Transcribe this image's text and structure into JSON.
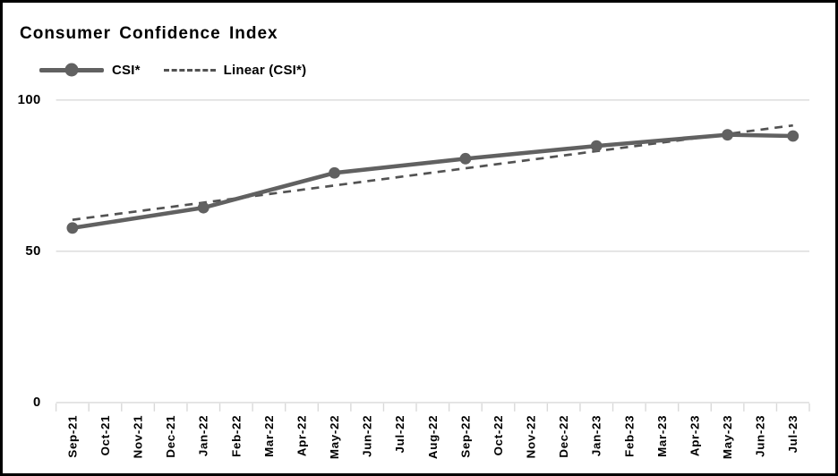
{
  "title": "Consumer Confidence Index",
  "legend": {
    "items": [
      {
        "label": "CSI*",
        "swatch": "solid-line-with-circle-marker"
      },
      {
        "label": "Linear (CSI*)",
        "swatch": "dashed-line"
      }
    ]
  },
  "colors": {
    "series": "#616161",
    "trend": "#525252",
    "gridline": "#d9d9d9",
    "tick": "#d9d9d9",
    "text": "#000000",
    "background": "#ffffff",
    "border": "#000000"
  },
  "chart_data": {
    "type": "line",
    "title": "Consumer Confidence Index",
    "categories": [
      "Sep-21",
      "Oct-21",
      "Nov-21",
      "Dec-21",
      "Jan-22",
      "Feb-22",
      "Mar-22",
      "Apr-22",
      "May-22",
      "Jun-22",
      "Jul-22",
      "Aug-22",
      "Sep-22",
      "Oct-22",
      "Nov-22",
      "Dec-22",
      "Jan-23",
      "Feb-23",
      "Mar-23",
      "Apr-23",
      "May-23",
      "Jun-23",
      "Jul-23"
    ],
    "series": [
      {
        "name": "CSI*",
        "style": "solid",
        "marker": "circle",
        "points": [
          {
            "x": "Sep-21",
            "y": 57.7
          },
          {
            "x": "Jan-22",
            "y": 64.4
          },
          {
            "x": "May-22",
            "y": 75.9
          },
          {
            "x": "Sep-22",
            "y": 80.6
          },
          {
            "x": "Jan-23",
            "y": 84.8
          },
          {
            "x": "May-23",
            "y": 88.5
          },
          {
            "x": "Jul-23",
            "y": 88.1
          }
        ]
      },
      {
        "name": "Linear (CSI*)",
        "style": "dashed-trendline",
        "trend": {
          "start_x": "Sep-21",
          "start_y": 60.4,
          "end_x": "Jul-23",
          "end_y": 91.6
        }
      }
    ],
    "ylim": [
      0,
      100
    ],
    "yticks": [
      0,
      50,
      100
    ],
    "grid": "horizontal",
    "legend_position": "top-left",
    "x_label_rotation": -90
  }
}
